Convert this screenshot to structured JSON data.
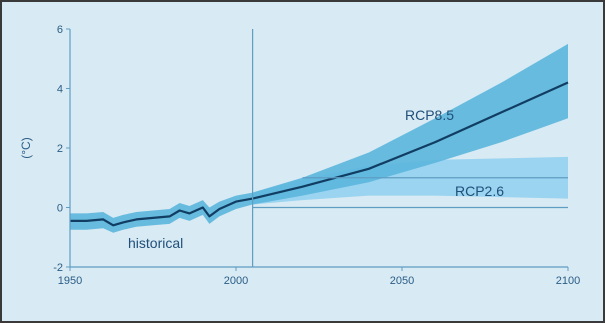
{
  "chart_data": {
    "type": "line",
    "xlim": [
      1950,
      2100
    ],
    "ylim": [
      -2,
      6
    ],
    "ylabel": "(°C)",
    "x_ticks": [
      1950,
      2000,
      2050,
      2100
    ],
    "y_ticks": [
      -2,
      0,
      2,
      4,
      6
    ],
    "divider_x": 2005,
    "reference_y": 0,
    "annotations": {
      "historical": "historical",
      "rcp85": "RCP8.5",
      "rcp26": "RCP2.6"
    },
    "series": [
      {
        "name": "historical",
        "x": [
          1950,
          1955,
          1960,
          1963,
          1966,
          1970,
          1975,
          1980,
          1983,
          1986,
          1990,
          1992,
          1995,
          2000,
          2005
        ],
        "y": [
          -0.45,
          -0.45,
          -0.4,
          -0.6,
          -0.5,
          -0.4,
          -0.35,
          -0.3,
          -0.1,
          -0.2,
          0.0,
          -0.3,
          -0.05,
          0.2,
          0.3
        ],
        "lower": [
          -0.75,
          -0.75,
          -0.7,
          -0.85,
          -0.75,
          -0.65,
          -0.6,
          -0.55,
          -0.35,
          -0.45,
          -0.25,
          -0.55,
          -0.3,
          -0.05,
          0.1
        ],
        "upper": [
          -0.2,
          -0.2,
          -0.15,
          -0.35,
          -0.25,
          -0.15,
          -0.1,
          -0.05,
          0.15,
          0.05,
          0.25,
          0.0,
          0.2,
          0.4,
          0.5
        ]
      },
      {
        "name": "RCP8.5",
        "x": [
          2005,
          2020,
          2040,
          2060,
          2080,
          2100
        ],
        "y": [
          0.3,
          0.7,
          1.3,
          2.2,
          3.2,
          4.2
        ],
        "lower": [
          0.1,
          0.4,
          0.85,
          1.5,
          2.2,
          3.0
        ],
        "upper": [
          0.5,
          1.0,
          1.85,
          3.0,
          4.2,
          5.5
        ]
      },
      {
        "name": "RCP2.6",
        "x": [
          2005,
          2020,
          2040,
          2060,
          2080,
          2100
        ],
        "y": [
          0.3,
          0.6,
          0.9,
          1.0,
          1.0,
          1.0
        ],
        "lower": [
          0.1,
          0.25,
          0.4,
          0.4,
          0.35,
          0.3
        ],
        "upper": [
          0.5,
          0.95,
          1.4,
          1.6,
          1.65,
          1.7
        ]
      }
    ],
    "colors": {
      "background": "#d8eaf3",
      "axis": "#5f9dc3",
      "band": "#5bb6dd",
      "band_rcp26": "#8fd0ee",
      "line": "#123d63",
      "divider": "#5f9dc3"
    }
  }
}
